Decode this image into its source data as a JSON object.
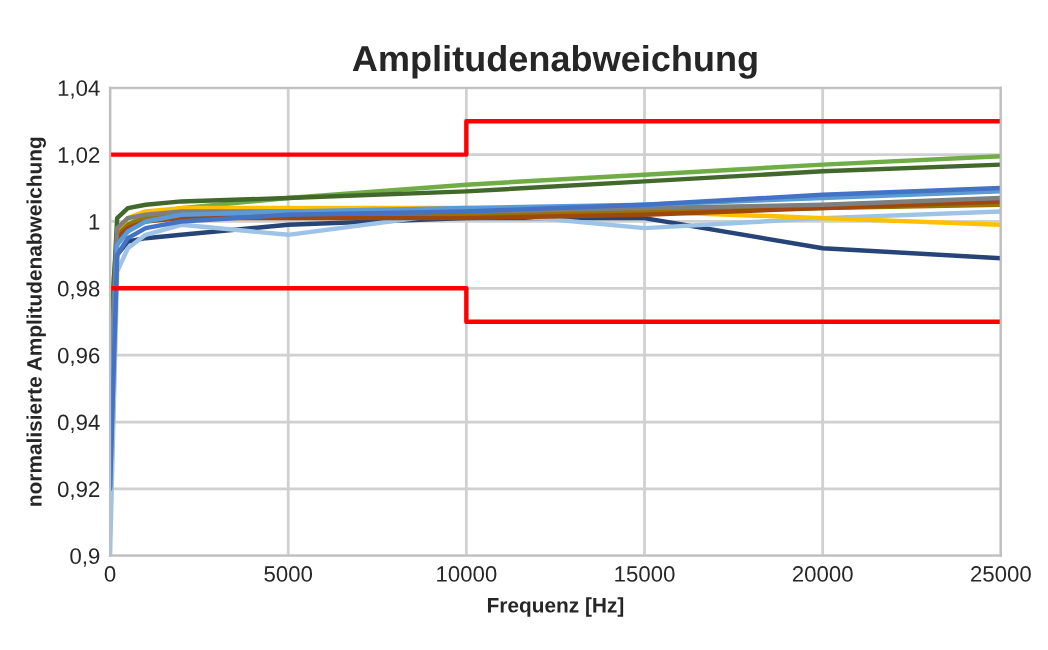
{
  "chart_data": {
    "type": "line",
    "title": "Amplitudenabweichung",
    "xlabel": "Frequenz [Hz]",
    "ylabel": "normalisierte Amplitudenabweichung",
    "xlim": [
      0,
      25000
    ],
    "xticks": [
      0,
      5000,
      10000,
      15000,
      20000,
      25000
    ],
    "ylim": [
      0.9,
      1.04
    ],
    "yticks": [
      {
        "value": 0.9,
        "label": "0,9"
      },
      {
        "value": 0.92,
        "label": "0,92"
      },
      {
        "value": 0.94,
        "label": "0,94"
      },
      {
        "value": 0.96,
        "label": "0,96"
      },
      {
        "value": 0.98,
        "label": "0,98"
      },
      {
        "value": 1.0,
        "label": "1"
      },
      {
        "value": 1.02,
        "label": "1,02"
      },
      {
        "value": 1.04,
        "label": "1,04"
      }
    ],
    "grid": true,
    "legend": false,
    "marker": "none",
    "line_style": "solid",
    "x": [
      0,
      200,
      500,
      1000,
      2000,
      5000,
      10000,
      15000,
      20000,
      25000
    ],
    "series": [
      {
        "color": "#70ad47",
        "values": [
          0.97,
          0.995,
          0.999,
          1.002,
          1.004,
          1.007,
          1.011,
          1.014,
          1.017,
          1.0195
        ]
      },
      {
        "color": "#43682b",
        "values": [
          0.96,
          1.001,
          1.004,
          1.005,
          1.006,
          1.007,
          1.009,
          1.012,
          1.015,
          1.017
        ]
      },
      {
        "color": "#264478",
        "values": [
          0.93,
          0.99,
          0.994,
          0.995,
          0.996,
          0.999,
          1.001,
          1.001,
          0.992,
          0.989
        ]
      },
      {
        "color": "#9dc3e6",
        "values": [
          0.9,
          0.985,
          0.992,
          0.996,
          0.999,
          0.996,
          1.003,
          0.998,
          1.001,
          1.003
        ]
      },
      {
        "color": "#ffc000",
        "values": [
          null,
          0.997,
          1.001,
          1.003,
          1.004,
          1.004,
          1.004,
          1.003,
          1.001,
          0.999
        ]
      },
      {
        "color": "#997300",
        "values": [
          null,
          0.996,
          0.999,
          1.001,
          1.002,
          1.002,
          1.002,
          1.003,
          1.004,
          1.005
        ]
      },
      {
        "color": "#9e480e",
        "values": [
          0.94,
          0.995,
          0.998,
          1.0,
          1.001,
          1.001,
          1.001,
          1.002,
          1.004,
          1.006
        ]
      },
      {
        "color": "#7f7f7f",
        "values": [
          0.95,
          0.998,
          1.001,
          1.002,
          1.003,
          1.003,
          1.003,
          1.004,
          1.005,
          1.007
        ]
      },
      {
        "color": "#5b9bd5",
        "values": [
          0.92,
          0.993,
          0.997,
          1.0,
          1.002,
          1.003,
          1.004,
          1.005,
          1.007,
          1.009
        ]
      },
      {
        "color": "#4472c4",
        "values": [
          0.92,
          0.99,
          0.995,
          0.998,
          1.0,
          1.002,
          1.003,
          1.005,
          1.008,
          1.01
        ]
      },
      {
        "color": "#ff0000",
        "x": [
          0,
          10000,
          10000,
          25000
        ],
        "values": [
          1.02,
          1.02,
          1.03,
          1.03
        ]
      },
      {
        "color": "#ff0000",
        "x": [
          0,
          10000,
          10000,
          25000
        ],
        "values": [
          0.98,
          0.98,
          0.97,
          0.97
        ]
      }
    ]
  }
}
